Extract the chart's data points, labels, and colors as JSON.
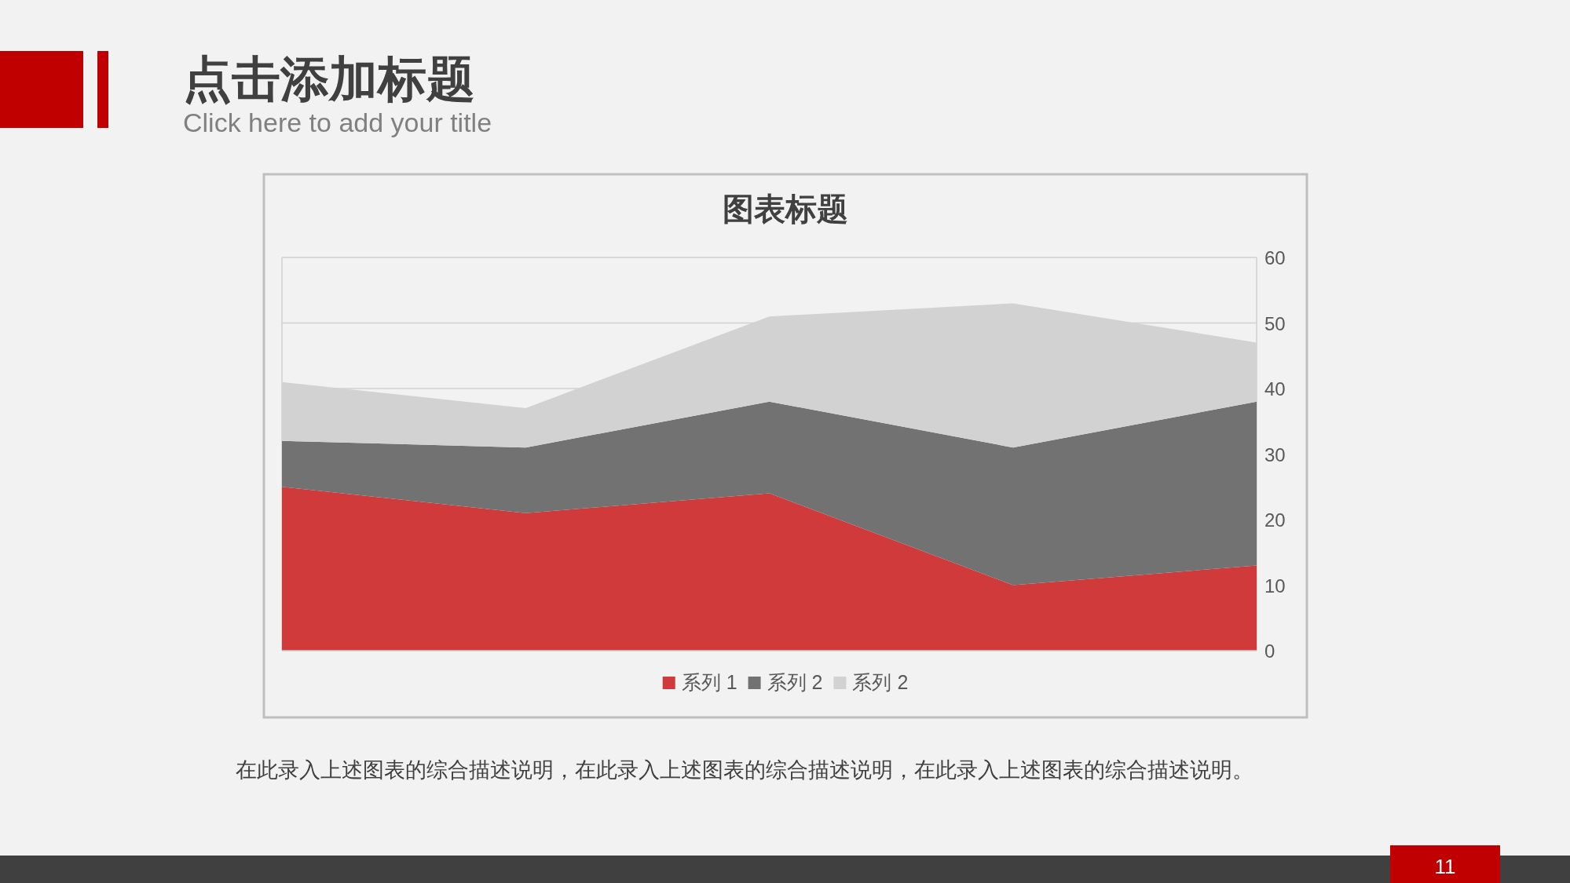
{
  "chart_data": {
    "type": "area",
    "title": "图表标题",
    "annotations": [
      "点击添加标题",
      "Click here to add your title",
      "在此录入上述图表的综合描述说明，在此录入上述图表的综合描述说明，在此录入上述图表的综合描述说明。",
      "11"
    ],
    "categories": [
      null,
      null,
      null,
      null,
      null
    ],
    "series": [
      {
        "name": "系列 1",
        "color": "#d03a3a",
        "values": [
          25,
          21,
          24,
          10,
          13
        ]
      },
      {
        "name": "系列 2",
        "color": "#727272",
        "values": [
          7,
          10,
          14,
          21,
          25
        ]
      },
      {
        "name": "系列 2",
        "color": "#d2d2d2",
        "values": [
          9,
          6,
          13,
          22,
          9
        ]
      }
    ],
    "stacked": true,
    "ylim": [
      0,
      60
    ],
    "yticks": [
      0,
      10,
      20,
      30,
      40,
      50,
      60
    ],
    "grid": "y",
    "legend": "bottom",
    "tick_labels": "y"
  }
}
